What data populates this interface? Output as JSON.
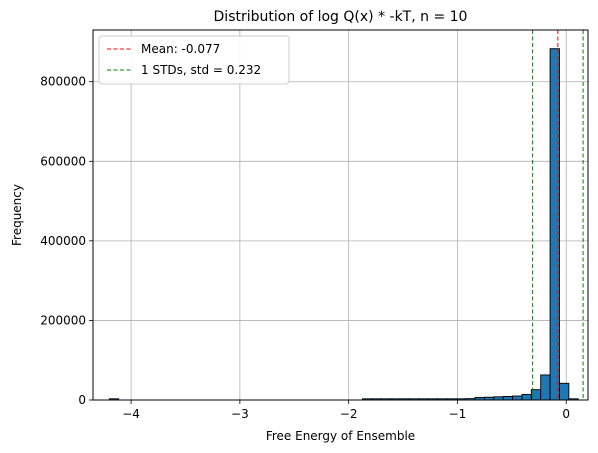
{
  "chart_data": {
    "type": "bar",
    "title": "Distribution of log Q(x) * -kT, n = 10",
    "xlabel": "Free Energy of Ensemble",
    "ylabel": "Frequency",
    "xlim": [
      -4.35,
      0.2
    ],
    "ylim": [
      0,
      930000
    ],
    "xticks": [
      -4,
      -3,
      -2,
      -1,
      0
    ],
    "xtick_labels": [
      "−4",
      "−3",
      "−2",
      "−1",
      "0"
    ],
    "yticks": [
      0,
      200000,
      400000,
      600000,
      800000
    ],
    "ytick_labels": [
      "0",
      "200000",
      "400000",
      "600000",
      "800000"
    ],
    "grid": true,
    "bar_color": "#1f77b4",
    "bar_edge_color": "#000000",
    "bins": {
      "start": -4.2,
      "width": 0.0862,
      "counts": [
        1,
        0,
        0,
        0,
        0,
        0,
        0,
        0,
        0,
        0,
        0,
        0,
        0,
        0,
        0,
        0,
        0,
        0,
        0,
        0,
        0,
        0,
        0,
        0,
        0,
        0,
        0,
        2,
        5,
        10,
        18,
        30,
        55,
        120,
        250,
        500,
        900,
        1800,
        3500,
        6500,
        7000,
        8000,
        9000,
        10000,
        14000,
        26000,
        63000,
        883000,
        42000,
        1500
      ]
    },
    "reference_lines": [
      {
        "x": -0.077,
        "color": "#ff0000",
        "style": "dashed"
      },
      {
        "x": -0.309,
        "color": "#008000",
        "style": "dashed"
      },
      {
        "x": 0.155,
        "color": "#008000",
        "style": "dashed"
      }
    ],
    "legend": {
      "position": "top-left",
      "entries": [
        {
          "label": "Mean: -0.077",
          "color": "#ff0000",
          "style": "dashed"
        },
        {
          "label": "1 STDs, std = 0.232",
          "color": "#008000",
          "style": "dashed"
        }
      ]
    }
  }
}
